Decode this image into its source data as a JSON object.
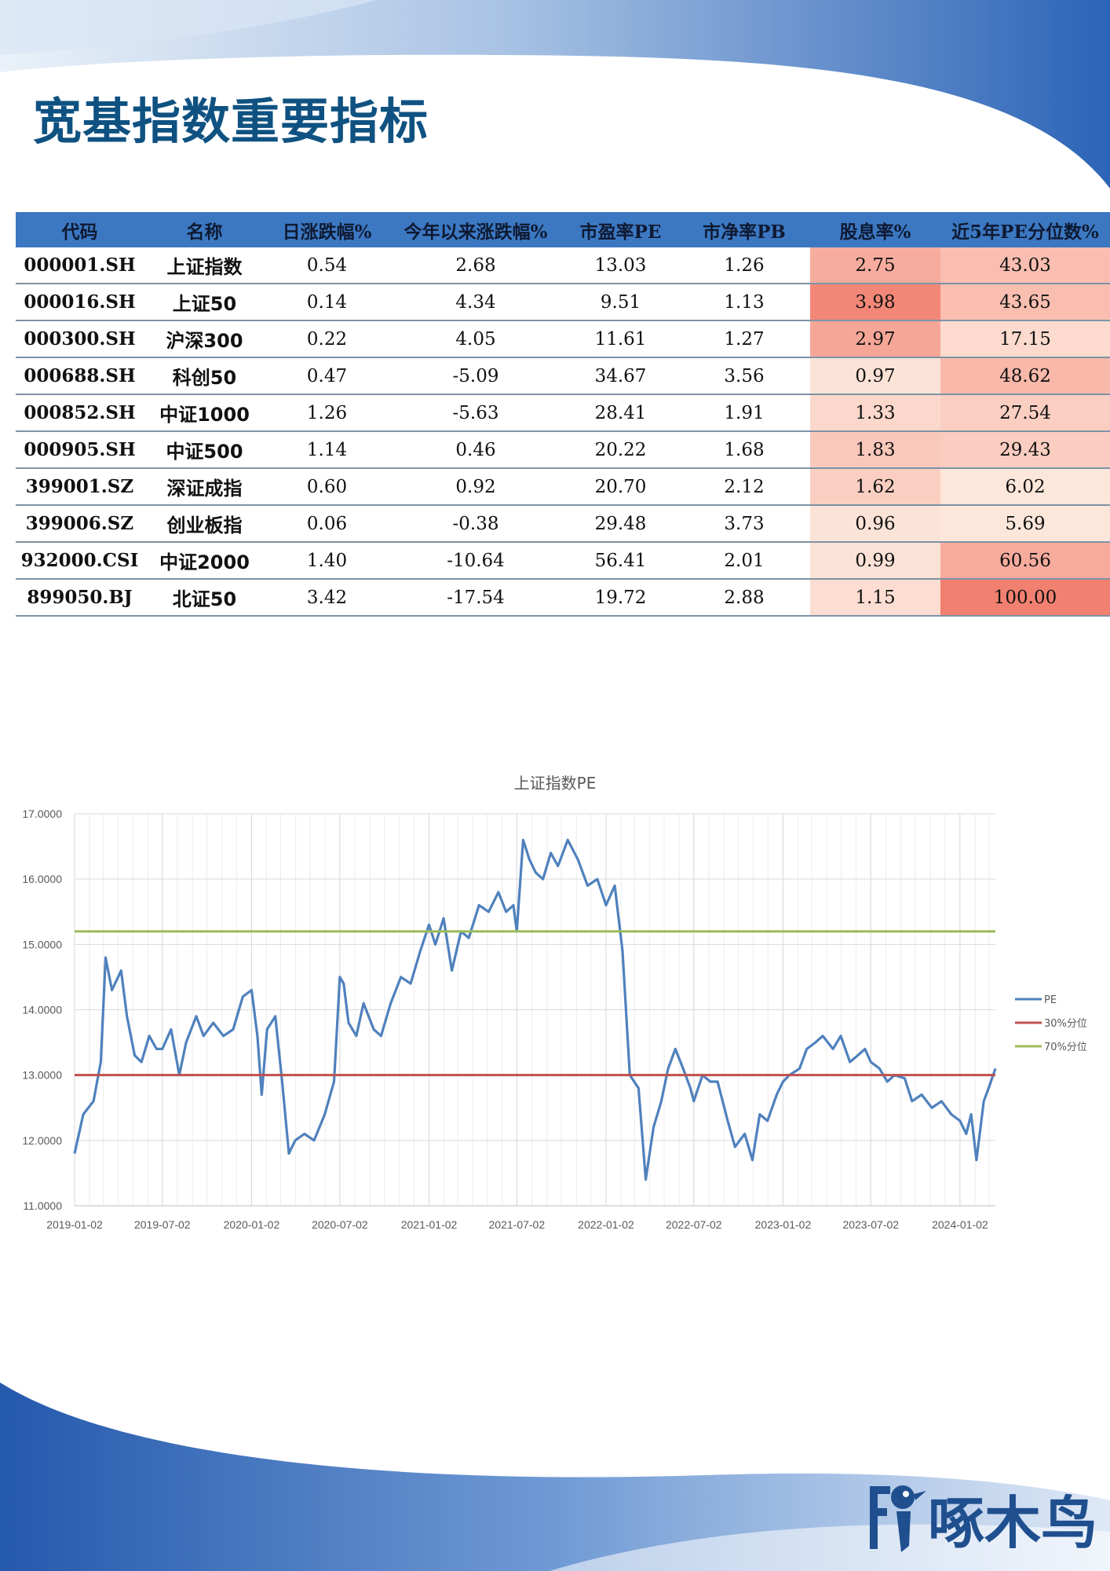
{
  "page": {
    "title": "宽基指数重要指标",
    "colors": {
      "title": "#0f5282",
      "header_bg": "#3c78c2",
      "positive": "#e4141b",
      "negative": "#1b8a1f"
    }
  },
  "table": {
    "headers": [
      "代码",
      "名称",
      "日涨跌幅%",
      "今年以来涨跌幅%",
      "市盈率PE",
      "市净率PB",
      "股息率%",
      "近5年PE分位数%"
    ],
    "rows": [
      [
        "000001.SH",
        "上证指数",
        "0.54",
        "2.68",
        "13.03",
        "1.26",
        "2.75",
        "43.03"
      ],
      [
        "000016.SH",
        "上证50",
        "0.14",
        "4.34",
        "9.51",
        "1.13",
        "3.98",
        "43.65"
      ],
      [
        "000300.SH",
        "沪深300",
        "0.22",
        "4.05",
        "11.61",
        "1.27",
        "2.97",
        "17.15"
      ],
      [
        "000688.SH",
        "科创50",
        "0.47",
        "-5.09",
        "34.67",
        "3.56",
        "0.97",
        "48.62"
      ],
      [
        "000852.SH",
        "中证1000",
        "1.26",
        "-5.63",
        "28.41",
        "1.91",
        "1.33",
        "27.54"
      ],
      [
        "000905.SH",
        "中证500",
        "1.14",
        "0.46",
        "20.22",
        "1.68",
        "1.83",
        "29.43"
      ],
      [
        "399001.SZ",
        "深证成指",
        "0.60",
        "0.92",
        "20.70",
        "2.12",
        "1.62",
        "6.02"
      ],
      [
        "399006.SZ",
        "创业板指",
        "0.06",
        "-0.38",
        "29.48",
        "3.73",
        "0.96",
        "5.69"
      ],
      [
        "932000.CSI",
        "中证2000",
        "1.40",
        "-10.64",
        "56.41",
        "2.01",
        "0.99",
        "60.56"
      ],
      [
        "899050.BJ",
        "北证50",
        "3.42",
        "-17.54",
        "19.72",
        "2.88",
        "1.15",
        "100.00"
      ]
    ]
  },
  "chart_data": {
    "type": "line",
    "title": "上证指数PE",
    "xlabel": "",
    "ylabel": "",
    "ylim": [
      11.0,
      17.0
    ],
    "yticks": [
      "11.0000",
      "12.0000",
      "13.0000",
      "14.0000",
      "15.0000",
      "16.0000",
      "17.0000"
    ],
    "xticks": [
      "2019-01-02",
      "2019-07-02",
      "2020-01-02",
      "2020-07-02",
      "2021-01-02",
      "2021-07-02",
      "2022-01-02",
      "2022-07-02",
      "2023-01-02",
      "2023-07-02",
      "2024-01-02"
    ],
    "xlim": [
      "2019-01-02",
      "2024-03-15"
    ],
    "grid": true,
    "legend_position": "right",
    "series": [
      {
        "name": "PE",
        "color": "#4f81bd",
        "x": [
          "2019-01-02",
          "2019-01-20",
          "2019-02-10",
          "2019-02-25",
          "2019-03-07",
          "2019-03-20",
          "2019-04-08",
          "2019-04-20",
          "2019-05-06",
          "2019-05-20",
          "2019-06-05",
          "2019-06-20",
          "2019-07-02",
          "2019-07-20",
          "2019-08-06",
          "2019-08-20",
          "2019-09-10",
          "2019-09-25",
          "2019-10-15",
          "2019-11-05",
          "2019-11-25",
          "2019-12-15",
          "2020-01-02",
          "2020-01-14",
          "2020-01-23",
          "2020-02-03",
          "2020-02-20",
          "2020-03-05",
          "2020-03-19",
          "2020-04-01",
          "2020-04-20",
          "2020-05-10",
          "2020-06-01",
          "2020-06-20",
          "2020-07-02",
          "2020-07-10",
          "2020-07-20",
          "2020-08-05",
          "2020-08-20",
          "2020-09-10",
          "2020-09-25",
          "2020-10-15",
          "2020-11-05",
          "2020-11-25",
          "2020-12-15",
          "2021-01-02",
          "2021-01-15",
          "2021-02-01",
          "2021-02-18",
          "2021-03-09",
          "2021-03-25",
          "2021-04-15",
          "2021-05-05",
          "2021-05-25",
          "2021-06-10",
          "2021-06-25",
          "2021-07-02",
          "2021-07-15",
          "2021-07-28",
          "2021-08-10",
          "2021-08-25",
          "2021-09-10",
          "2021-09-25",
          "2021-10-15",
          "2021-11-05",
          "2021-11-25",
          "2021-12-15",
          "2022-01-02",
          "2022-01-20",
          "2022-02-05",
          "2022-02-20",
          "2022-03-10",
          "2022-03-25",
          "2022-04-10",
          "2022-04-26",
          "2022-05-10",
          "2022-05-25",
          "2022-06-10",
          "2022-06-25",
          "2022-07-02",
          "2022-07-20",
          "2022-08-05",
          "2022-08-20",
          "2022-09-10",
          "2022-09-25",
          "2022-10-15",
          "2022-10-31",
          "2022-11-15",
          "2022-12-01",
          "2022-12-20",
          "2023-01-02",
          "2023-01-15",
          "2023-02-05",
          "2023-02-20",
          "2023-03-10",
          "2023-03-25",
          "2023-04-15",
          "2023-05-01",
          "2023-05-20",
          "2023-06-05",
          "2023-06-20",
          "2023-07-02",
          "2023-07-20",
          "2023-08-05",
          "2023-08-20",
          "2023-09-10",
          "2023-09-25",
          "2023-10-15",
          "2023-11-05",
          "2023-11-25",
          "2023-12-15",
          "2024-01-02",
          "2024-01-15",
          "2024-01-25",
          "2024-02-05",
          "2024-02-20",
          "2024-03-01",
          "2024-03-15"
        ],
        "values": [
          11.8,
          12.4,
          12.6,
          13.2,
          14.8,
          14.3,
          14.6,
          13.9,
          13.3,
          13.2,
          13.6,
          13.4,
          13.4,
          13.7,
          13.0,
          13.5,
          13.9,
          13.6,
          13.8,
          13.6,
          13.7,
          14.2,
          14.3,
          13.6,
          12.7,
          13.7,
          13.9,
          12.9,
          11.8,
          12.0,
          12.1,
          12.0,
          12.4,
          12.9,
          14.5,
          14.4,
          13.8,
          13.6,
          14.1,
          13.7,
          13.6,
          14.1,
          14.5,
          14.4,
          14.9,
          15.3,
          15.0,
          15.4,
          14.6,
          15.2,
          15.1,
          15.6,
          15.5,
          15.8,
          15.5,
          15.6,
          15.2,
          16.6,
          16.3,
          16.1,
          16.0,
          16.4,
          16.2,
          16.6,
          16.3,
          15.9,
          16.0,
          15.6,
          15.9,
          14.9,
          13.0,
          12.8,
          11.4,
          12.2,
          12.6,
          13.1,
          13.4,
          13.1,
          12.8,
          12.6,
          13.0,
          12.9,
          12.9,
          12.3,
          11.9,
          12.1,
          11.7,
          12.4,
          12.3,
          12.7,
          12.9,
          13.0,
          13.1,
          13.4,
          13.5,
          13.6,
          13.4,
          13.6,
          13.2,
          13.3,
          13.4,
          13.2,
          13.1,
          12.9,
          13.0,
          12.95,
          12.6,
          12.7,
          12.5,
          12.6,
          12.4,
          12.3,
          12.1,
          12.4,
          11.7,
          12.6,
          12.8,
          13.1
        ]
      },
      {
        "name": "30%分位",
        "color": "#c0504d",
        "constant": 13.0
      },
      {
        "name": "70%分位",
        "color": "#9bbb59",
        "constant": 15.2
      }
    ]
  },
  "logo": {
    "text": "啄木鸟"
  }
}
